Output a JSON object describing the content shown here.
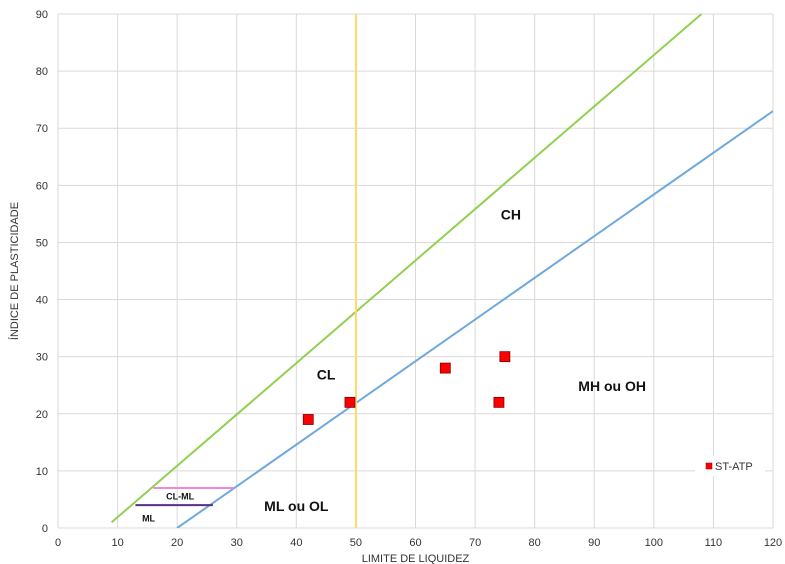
{
  "chart_data": {
    "type": "scatter",
    "title": "",
    "xlabel": "LIMITE DE LIQUIDEZ",
    "ylabel": "ÍNDICE DE PLASTICIDADE",
    "xlim": [
      0,
      120
    ],
    "ylim": [
      0,
      90
    ],
    "xticks": [
      0,
      10,
      20,
      30,
      40,
      50,
      60,
      70,
      80,
      90,
      100,
      110,
      120
    ],
    "yticks": [
      0,
      10,
      20,
      30,
      40,
      50,
      60,
      70,
      80,
      90
    ],
    "grid": true,
    "series": [
      {
        "name": "ST-ATP",
        "color": "#ff0000",
        "marker": "square",
        "points": [
          {
            "x": 42,
            "y": 19
          },
          {
            "x": 49,
            "y": 22
          },
          {
            "x": 65,
            "y": 28
          },
          {
            "x": 74,
            "y": 22
          },
          {
            "x": 75,
            "y": 30
          }
        ]
      }
    ],
    "reference_lines": [
      {
        "id": "u-line",
        "color": "#92d050",
        "points": [
          {
            "x": 9,
            "y": 1
          },
          {
            "x": 108,
            "y": 90
          }
        ]
      },
      {
        "id": "a-line",
        "color": "#6fa8dc",
        "points": [
          {
            "x": 20,
            "y": 0
          },
          {
            "x": 120,
            "y": 73
          }
        ]
      },
      {
        "id": "ll50-line",
        "color": "#ffd966",
        "points": [
          {
            "x": 50,
            "y": 0
          },
          {
            "x": 50,
            "y": 90
          }
        ]
      },
      {
        "id": "cl-ml-line",
        "color": "#ee88dd",
        "points": [
          {
            "x": 16,
            "y": 7
          },
          {
            "x": 29.5,
            "y": 7
          }
        ]
      },
      {
        "id": "ml-line",
        "color": "#5b2c83",
        "points": [
          {
            "x": 13,
            "y": 4
          },
          {
            "x": 26,
            "y": 4
          }
        ]
      }
    ],
    "annotations": [
      {
        "id": "zone-ch",
        "text": "CH",
        "x": 76,
        "y": 54,
        "size": "large"
      },
      {
        "id": "zone-cl",
        "text": "CL",
        "x": 45,
        "y": 26,
        "size": "large"
      },
      {
        "id": "zone-mh-oh",
        "text": "MH ou OH",
        "x": 93,
        "y": 24,
        "size": "large"
      },
      {
        "id": "zone-ml-ol",
        "text": "ML ou OL",
        "x": 40,
        "y": 3,
        "size": "large"
      },
      {
        "id": "zone-cl-ml",
        "text": "CL-ML",
        "x": 20.5,
        "y": 5,
        "size": "small"
      },
      {
        "id": "zone-ml",
        "text": "ML",
        "x": 15.2,
        "y": 1.1,
        "size": "small"
      }
    ],
    "legend": {
      "position": "bottom-right",
      "entries": [
        "ST-ATP"
      ]
    }
  }
}
